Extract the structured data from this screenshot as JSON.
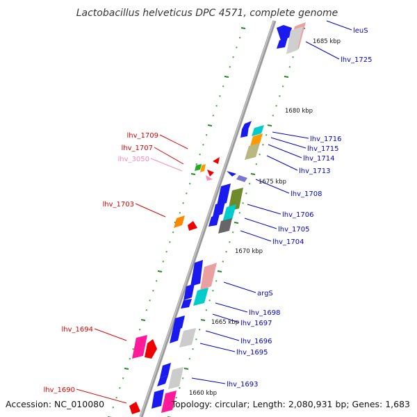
{
  "title": "Lactobacillus helveticus DPC 4571, complete genome",
  "footer": {
    "accession": "Accession: NC_010080",
    "summary": "Topology: circular; Length: 2,080,931 bp; Genes: 1,683"
  },
  "colors": {
    "forward_label": "#0000cc",
    "reverse_label": "#dd0000",
    "rna_label": "#ff88bb",
    "backbone": "#8a8a8a",
    "tick": "#228822",
    "tick_dot": "#44aa44"
  },
  "scale": {
    "unit": "kbp",
    "labels": [
      "1685 kbp",
      "1680 kbp",
      "1675 kbp",
      "1670 kbp",
      "1665 kbp",
      "1660 kbp"
    ]
  },
  "genes_forward": [
    "leuS",
    "lhv_1725",
    "lhv_1716",
    "lhv_1715",
    "lhv_1714",
    "lhv_1713",
    "lhv_1708",
    "lhv_1706",
    "lhv_1705",
    "lhv_1704",
    "argS",
    "lhv_1698",
    "lhv_1697",
    "lhv_1696",
    "lhv_1695",
    "lhv_1693"
  ],
  "genes_reverse": [
    "lhv_1709",
    "lhv_1707",
    "lhv_3050",
    "lhv_1703",
    "lhv_1694",
    "lhv_1690"
  ]
}
